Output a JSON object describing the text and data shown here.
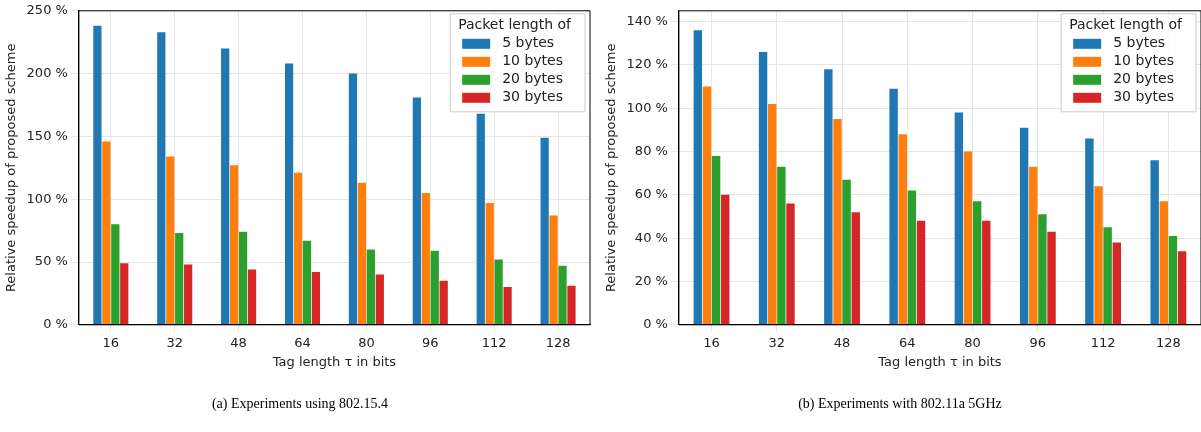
{
  "chart_data": [
    {
      "type": "bar",
      "xlabel": "Tag length τ in bits",
      "ylabel": "Relative speedup of proposed scheme",
      "legend_title": "Packet length of",
      "legend": "top right",
      "grid": true,
      "categories": [
        "16",
        "32",
        "48",
        "64",
        "80",
        "96",
        "112",
        "128"
      ],
      "ylim": [
        0,
        250
      ],
      "yticks": [
        {
          "value": 0,
          "label": "0 %"
        },
        {
          "value": 50,
          "label": "50 %"
        },
        {
          "value": 100,
          "label": "100 %"
        },
        {
          "value": 150,
          "label": "150 %"
        },
        {
          "value": 200,
          "label": "200 %"
        },
        {
          "value": 250,
          "label": "250 %"
        }
      ],
      "series": [
        {
          "name": "5 bytes",
          "color": "#1f77b4",
          "values": [
            238,
            233,
            220,
            208,
            200,
            181,
            168,
            149
          ]
        },
        {
          "name": "10 bytes",
          "color": "#ff7f0e",
          "values": [
            146,
            134,
            127,
            121,
            113,
            105,
            97,
            87
          ]
        },
        {
          "name": "20 bytes",
          "color": "#2ca02c",
          "values": [
            80,
            73,
            74,
            67,
            60,
            59,
            52,
            47
          ]
        },
        {
          "name": "30 bytes",
          "color": "#d62728",
          "values": [
            49,
            48,
            44,
            42,
            40,
            35,
            30,
            31
          ]
        }
      ],
      "annotations": [
        "(a)  Experiments using 802.15.4"
      ]
    },
    {
      "type": "bar",
      "xlabel": "Tag length τ in bits",
      "ylabel": "Relative speedup of proposed scheme",
      "legend_title": "Packet length of",
      "legend": "top right",
      "grid": true,
      "categories": [
        "16",
        "32",
        "48",
        "64",
        "80",
        "96",
        "112",
        "128"
      ],
      "ylim": [
        0,
        145
      ],
      "yticks": [
        {
          "value": 0,
          "label": "0 %"
        },
        {
          "value": 20,
          "label": "20 %"
        },
        {
          "value": 40,
          "label": "40 %"
        },
        {
          "value": 60,
          "label": "60 %"
        },
        {
          "value": 80,
          "label": "80 %"
        },
        {
          "value": 100,
          "label": "100 %"
        },
        {
          "value": 120,
          "label": "120 %"
        },
        {
          "value": 140,
          "label": "140 %"
        }
      ],
      "series": [
        {
          "name": "5 bytes",
          "color": "#1f77b4",
          "values": [
            136,
            126,
            118,
            109,
            98,
            91,
            86,
            76
          ]
        },
        {
          "name": "10 bytes",
          "color": "#ff7f0e",
          "values": [
            110,
            102,
            95,
            88,
            80,
            73,
            64,
            57
          ]
        },
        {
          "name": "20 bytes",
          "color": "#2ca02c",
          "values": [
            78,
            73,
            67,
            62,
            57,
            51,
            45,
            41
          ]
        },
        {
          "name": "30 bytes",
          "color": "#d62728",
          "values": [
            60,
            56,
            52,
            48,
            48,
            43,
            38,
            34
          ]
        }
      ],
      "annotations": [
        "(b)  Experiments with 802.11a 5GHz"
      ]
    }
  ]
}
